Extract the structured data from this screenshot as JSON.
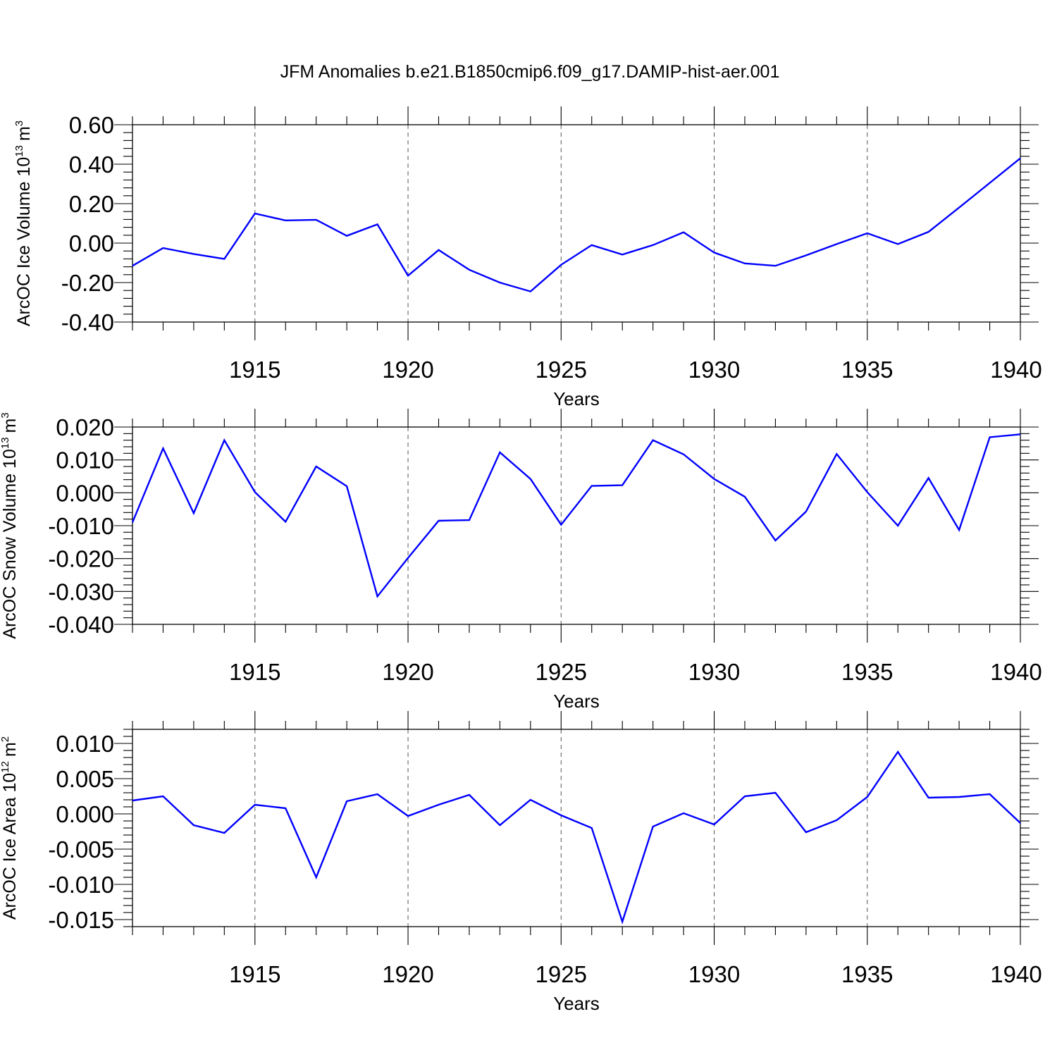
{
  "chart_data": {
    "type": "line",
    "title": "JFM Anomalies b.e21.B1850cmip6.f09_g17.DAMIP-hist-aer.001",
    "line_color": "#0000ff",
    "x_ticks": [
      1915,
      1920,
      1925,
      1930,
      1935,
      1940
    ],
    "xlim": [
      1911,
      1940
    ],
    "grid": "dashed vertical lines at labeled years",
    "panels": [
      {
        "xlabel": "Years",
        "ylabel_main": "ArcOC Ice Volume 10",
        "ylabel_exp": "13",
        "ylabel_unit": "m",
        "ylabel_unit_exp": "3",
        "ylim": [
          -0.4,
          0.6
        ],
        "y_ticks": [
          -0.4,
          -0.2,
          0.0,
          0.2,
          0.4,
          0.6
        ],
        "y_tick_labels": [
          "-0.40",
          "-0.20",
          "0.00",
          "0.20",
          "0.40",
          "0.60"
        ],
        "x": [
          1911,
          1912,
          1913,
          1914,
          1915,
          1916,
          1917,
          1918,
          1919,
          1920,
          1921,
          1922,
          1923,
          1924,
          1925,
          1926,
          1927,
          1928,
          1929,
          1930,
          1931,
          1932,
          1933,
          1934,
          1935,
          1936,
          1937,
          1938,
          1939,
          1940
        ],
        "values": [
          -0.115,
          -0.025,
          -0.055,
          -0.08,
          0.15,
          0.115,
          0.118,
          0.037,
          0.095,
          -0.165,
          -0.035,
          -0.135,
          -0.2,
          -0.245,
          -0.11,
          -0.01,
          -0.058,
          -0.01,
          0.055,
          -0.048,
          -0.103,
          -0.115,
          -0.062,
          -0.005,
          0.05,
          -0.005,
          0.057,
          0.18,
          0.305,
          0.43
        ]
      },
      {
        "xlabel": "Years",
        "ylabel_main": "ArcOC Snow Volume 10",
        "ylabel_exp": "13",
        "ylabel_unit": "m",
        "ylabel_unit_exp": "3",
        "ylim": [
          -0.04,
          0.02
        ],
        "y_ticks": [
          -0.04,
          -0.03,
          -0.02,
          -0.01,
          0.0,
          0.01,
          0.02
        ],
        "y_tick_labels": [
          "-0.040",
          "-0.030",
          "-0.020",
          "-0.010",
          "0.000",
          "0.010",
          "0.020"
        ],
        "x": [
          1911,
          1912,
          1913,
          1914,
          1915,
          1916,
          1917,
          1918,
          1919,
          1920,
          1921,
          1922,
          1923,
          1924,
          1925,
          1926,
          1927,
          1928,
          1929,
          1930,
          1931,
          1932,
          1933,
          1934,
          1935,
          1936,
          1937,
          1938,
          1939,
          1940
        ],
        "values": [
          -0.009,
          0.0135,
          -0.0062,
          0.016,
          0.0002,
          -0.0088,
          0.008,
          0.002,
          -0.0315,
          -0.0198,
          -0.0085,
          -0.0083,
          0.0123,
          0.0042,
          -0.0097,
          0.0021,
          0.0023,
          0.016,
          0.0117,
          0.0042,
          -0.0012,
          -0.0145,
          -0.0057,
          0.0118,
          0.0002,
          -0.01,
          0.0045,
          -0.0113,
          0.0169,
          0.0178
        ]
      },
      {
        "xlabel": "Years",
        "ylabel_main": "ArcOC Ice Area 10",
        "ylabel_exp": "12",
        "ylabel_unit": "m",
        "ylabel_unit_exp": "2",
        "ylim": [
          -0.016,
          0.012
        ],
        "y_ticks": [
          -0.015,
          -0.01,
          -0.005,
          0.0,
          0.005,
          0.01
        ],
        "y_tick_labels": [
          "-0.015",
          "-0.010",
          "-0.005",
          "0.000",
          "0.005",
          "0.010"
        ],
        "x": [
          1911,
          1912,
          1913,
          1914,
          1915,
          1916,
          1917,
          1918,
          1919,
          1920,
          1921,
          1922,
          1923,
          1924,
          1925,
          1926,
          1927,
          1928,
          1929,
          1930,
          1931,
          1932,
          1933,
          1934,
          1935,
          1936,
          1937,
          1938,
          1939,
          1940
        ],
        "values": [
          0.0019,
          0.0025,
          -0.0016,
          -0.0027,
          0.0013,
          0.0008,
          -0.009,
          0.0018,
          0.0028,
          -0.0003,
          0.0013,
          0.0027,
          -0.0016,
          0.002,
          -0.0002,
          -0.002,
          -0.0153,
          -0.0018,
          0.0001,
          -0.0015,
          0.0025,
          0.003,
          -0.0026,
          -0.0009,
          0.0024,
          0.0088,
          0.0023,
          0.0024,
          0.0028,
          -0.0013
        ]
      }
    ]
  }
}
